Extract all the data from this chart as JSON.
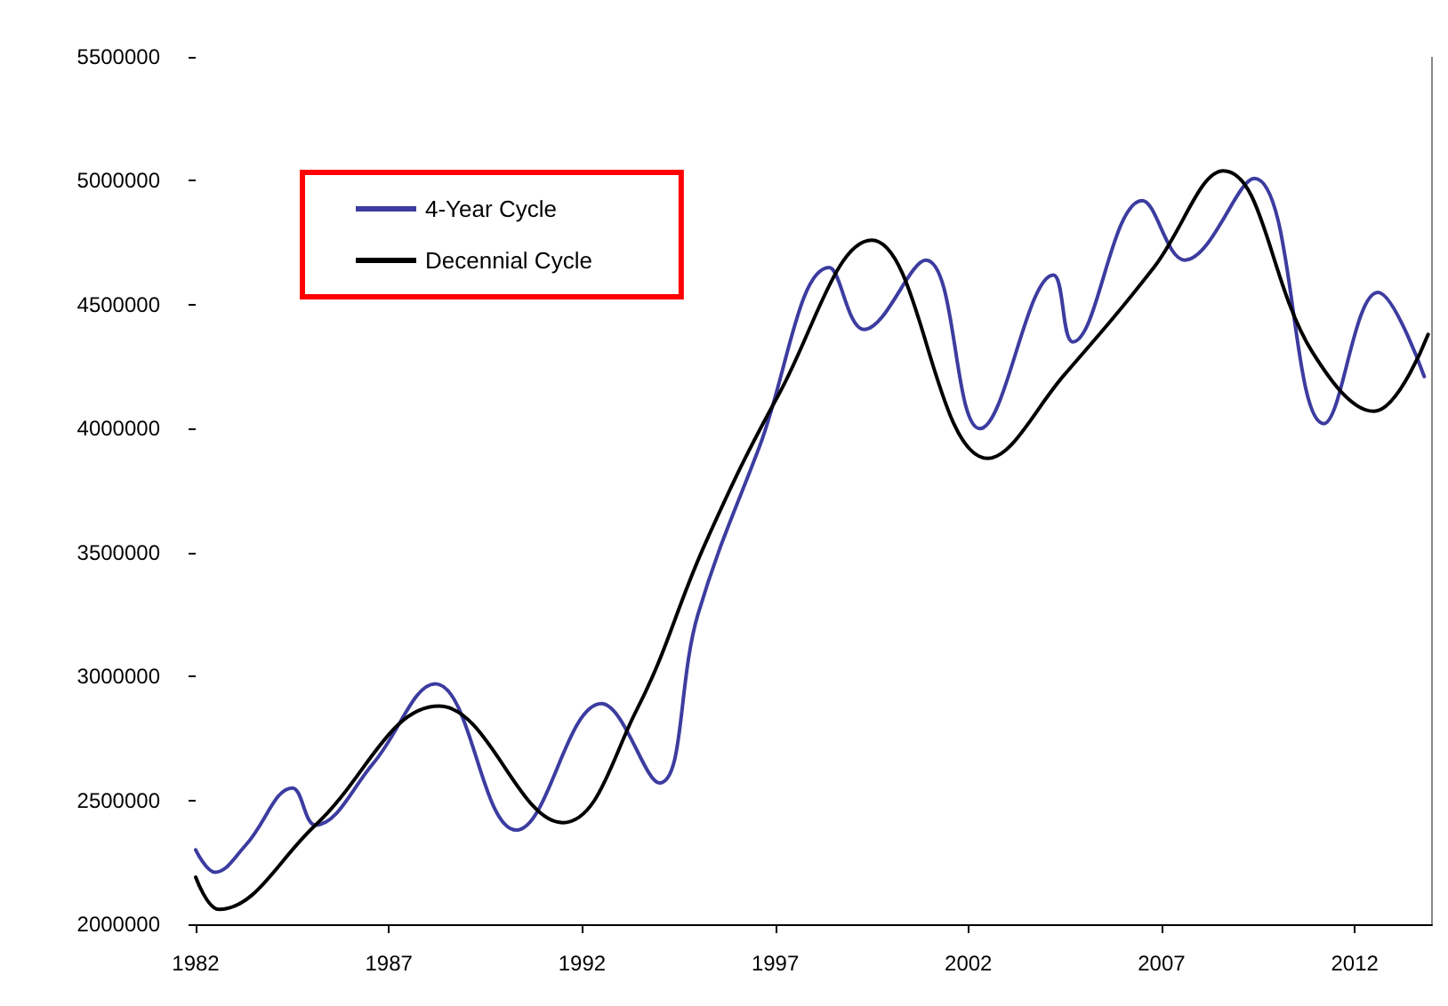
{
  "chart_data": {
    "type": "line",
    "xlim": [
      1982,
      2014
    ],
    "xticks": [
      1982,
      1987,
      1992,
      1997,
      2002,
      2007,
      2012
    ],
    "ylim": [
      2000000,
      5500000
    ],
    "yticks": [
      2000000,
      2500000,
      3000000,
      3500000,
      4000000,
      4500000,
      5000000,
      5500000
    ],
    "grid": false,
    "legend": "top left",
    "marker": "none",
    "series": [
      {
        "name": "4-Year Cycle",
        "color": "#3c3ca0",
        "x": [
          1982,
          1982.5,
          1983.3,
          1984.5,
          1985.1,
          1986.6,
          1988.2,
          1990.3,
          1992.5,
          1994.0,
          1995.0,
          1996.6,
          1998.4,
          1999.3,
          2000.9,
          2002.3,
          2004.2,
          2004.7,
          2006.5,
          2007.6,
          2009.4,
          2011.2,
          2012.6,
          2013.8
        ],
        "values": [
          2300000,
          2210000,
          2320000,
          2550000,
          2400000,
          2650000,
          2970000,
          2380000,
          2890000,
          2570000,
          3250000,
          3930000,
          4650000,
          4400000,
          4680000,
          4000000,
          4620000,
          4350000,
          4920000,
          4680000,
          5010000,
          4020000,
          4550000,
          4210000
        ]
      },
      {
        "name": "Decennial Cycle",
        "color": "#000000",
        "x": [
          1982,
          1982.6,
          1985.1,
          1988.3,
          1991.5,
          1993.4,
          1995.2,
          1997.1,
          1999.5,
          2002.5,
          2004.5,
          2006.8,
          2008.6,
          2010.9,
          2012.5,
          2013.9
        ],
        "values": [
          2190000,
          2060000,
          2400000,
          2880000,
          2410000,
          2860000,
          3540000,
          4140000,
          4760000,
          3880000,
          4220000,
          4650000,
          5040000,
          4310000,
          4070000,
          4380000
        ]
      }
    ]
  }
}
